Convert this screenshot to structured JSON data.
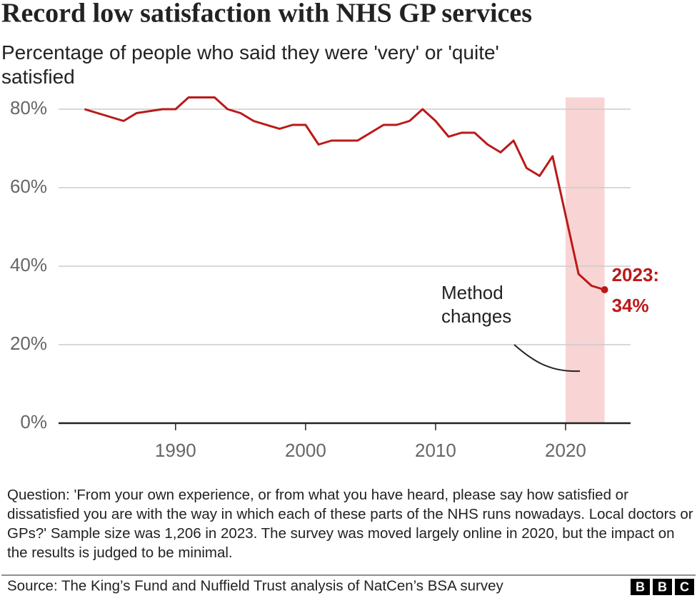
{
  "chart_data": {
    "type": "line",
    "title": "Record low satisfaction with NHS GP services",
    "subtitle": "Percentage of people who said they were 'very' or 'quite' satisfied",
    "x": [
      1983,
      1984,
      1986,
      1987,
      1989,
      1990,
      1991,
      1992,
      1993,
      1994,
      1995,
      1996,
      1998,
      1999,
      2000,
      2001,
      2002,
      2003,
      2004,
      2006,
      2007,
      2008,
      2009,
      2010,
      2011,
      2012,
      2013,
      2014,
      2015,
      2016,
      2017,
      2018,
      2019,
      2021,
      2022,
      2023
    ],
    "series": [
      {
        "name": "Satisfied",
        "color": "#bb1919",
        "values": [
          80,
          79,
          77,
          79,
          80,
          80,
          83,
          83,
          83,
          80,
          79,
          77,
          75,
          76,
          76,
          71,
          72,
          72,
          72,
          76,
          76,
          77,
          80,
          77,
          73,
          74,
          74,
          71,
          69,
          72,
          65,
          63,
          68,
          38,
          35,
          34
        ],
        "value_labels": [
          null,
          null,
          null,
          null,
          null,
          null,
          null,
          null,
          null,
          null,
          null,
          null,
          null,
          null,
          null,
          null,
          null,
          null,
          null,
          null,
          null,
          null,
          null,
          null,
          null,
          null,
          null,
          null,
          null,
          null,
          null,
          null,
          null,
          null,
          null,
          "34%"
        ]
      }
    ],
    "end_label_prefix": "2023:",
    "highlight_range": [
      2020,
      2023
    ],
    "highlight_color": "#f8d4d4",
    "annotation": [
      "Method",
      "changes"
    ],
    "xlim": [
      1981,
      2025
    ],
    "xticks": [
      1990,
      2000,
      2010,
      2020
    ],
    "ylim": [
      0,
      83
    ],
    "yticks": [
      {
        "value": 0,
        "label": "0%"
      },
      {
        "value": 20,
        "label": "20%"
      },
      {
        "value": 40,
        "label": "40%"
      },
      {
        "value": 60,
        "label": "60%"
      },
      {
        "value": 80,
        "label": "80%"
      }
    ],
    "grid": true,
    "note": "Question: 'From your own experience, or from what you have heard, please say how satisfied or dissatisfied you are with the way in which each of these parts of the NHS runs nowadays. Local doctors or GPs?' Sample size was 1,206 in 2023. The survey was moved largely online in 2020, but the impact on the results is judged to be minimal.",
    "source": "Source: The King’s Fund and Nuffield Trust analysis of NatCen’s BSA survey",
    "logo": [
      "B",
      "B",
      "C"
    ]
  }
}
